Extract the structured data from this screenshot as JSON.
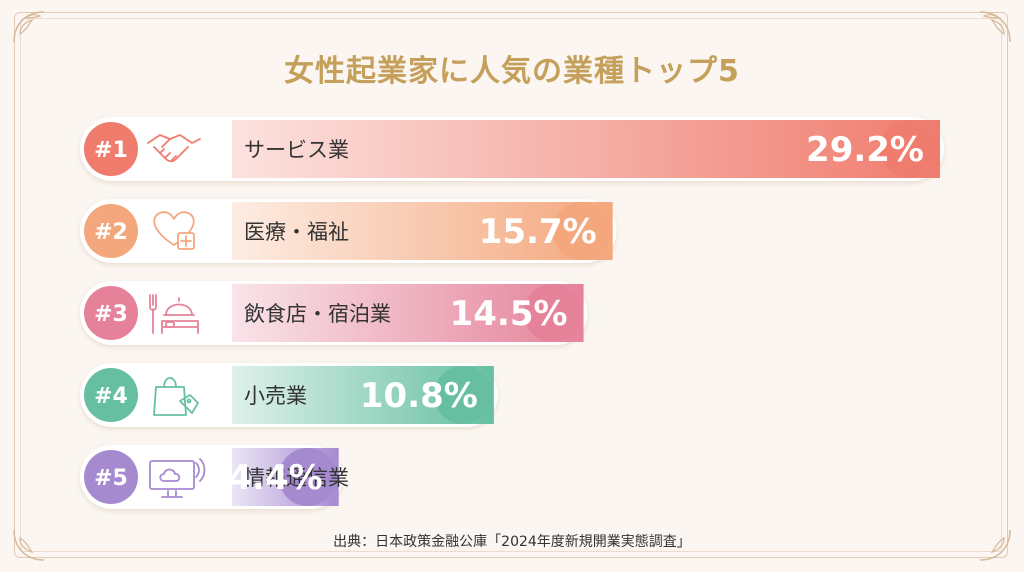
{
  "title": "女性起業家に人気の業種トップ5",
  "source": "出典：日本政策金融公庫「2024年度新規開業実態調査」",
  "colors": {
    "background": "#fbf6f1",
    "title": "#c4a05a",
    "frame": "#e2cbb7"
  },
  "chart_data": {
    "type": "bar",
    "orientation": "horizontal",
    "title": "女性起業家に人気の業種トップ5",
    "unit": "%",
    "categories": [
      "サービス業",
      "医療・福祉",
      "飲食店・宿泊業",
      "小売業",
      "情報通信業"
    ],
    "ranks": [
      "#1",
      "#2",
      "#3",
      "#4",
      "#5"
    ],
    "values": [
      29.2,
      15.7,
      14.5,
      10.8,
      4.4
    ],
    "value_labels": [
      "29.2%",
      "15.7%",
      "14.5%",
      "10.8%",
      "4.4%"
    ],
    "icons": [
      "handshake-icon",
      "heart-plus-icon",
      "fork-and-dish-icon",
      "shopping-bag-icon",
      "cloud-monitor-icon"
    ],
    "colors": [
      "#f07c6e",
      "#f4a77d",
      "#e5829a",
      "#67bfa2",
      "#a58ad0"
    ],
    "grid": false,
    "legend": "none"
  }
}
